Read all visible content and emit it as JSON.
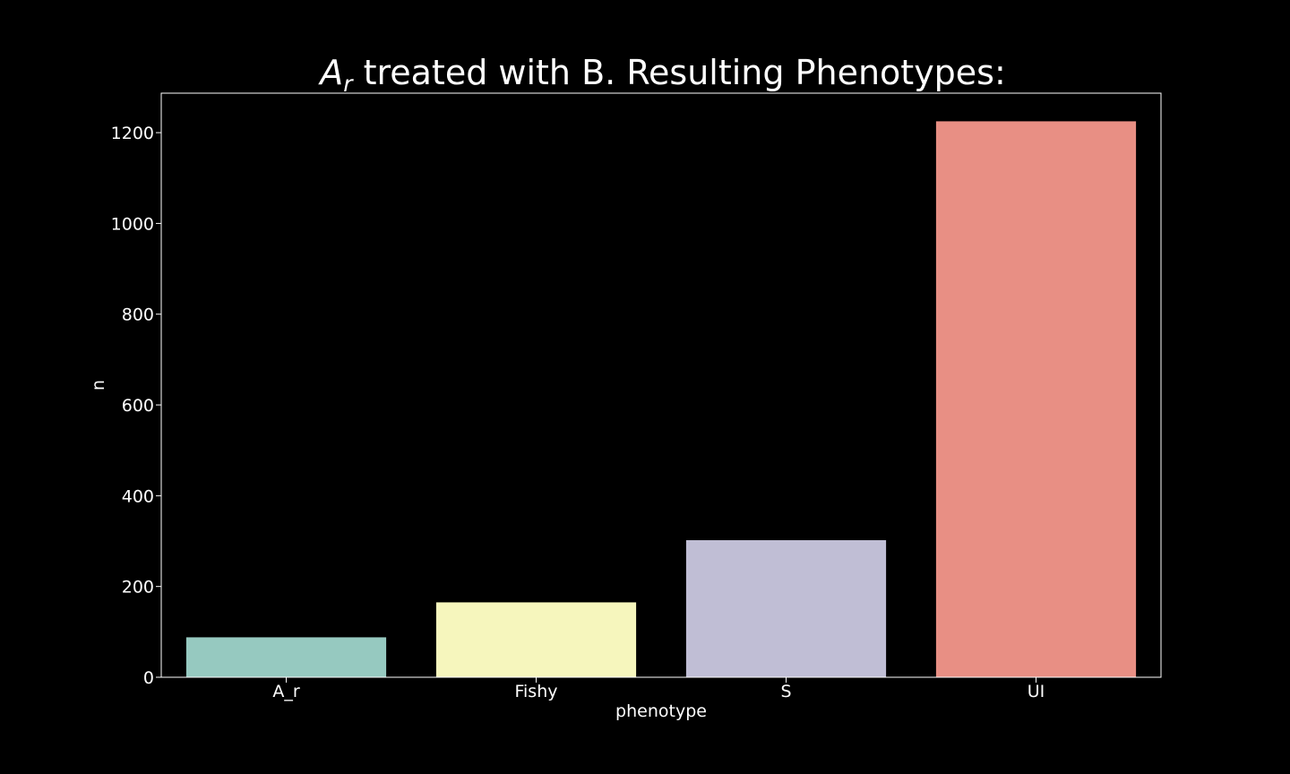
{
  "chart_data": {
    "type": "bar",
    "title": {
      "italic_part": "A",
      "subscript": "r",
      "rest": " treated with B. Resulting Phenotypes:"
    },
    "xlabel": "phenotype",
    "ylabel": "n",
    "categories": [
      "A_r",
      "Fishy",
      "S",
      "UI"
    ],
    "values": [
      88,
      165,
      302,
      1225
    ],
    "colors": [
      "#96c9c0",
      "#f6f6bd",
      "#c0bed5",
      "#e88f84"
    ],
    "ylim": [
      0,
      1287
    ],
    "yticks": [
      0,
      200,
      400,
      600,
      800,
      1000,
      1200
    ],
    "ytick_labels": [
      "0",
      "200",
      "400",
      "600",
      "800",
      "1000",
      "1200"
    ],
    "grid": false,
    "legend": "none",
    "background": "#000000",
    "foreground": "#ffffff"
  }
}
